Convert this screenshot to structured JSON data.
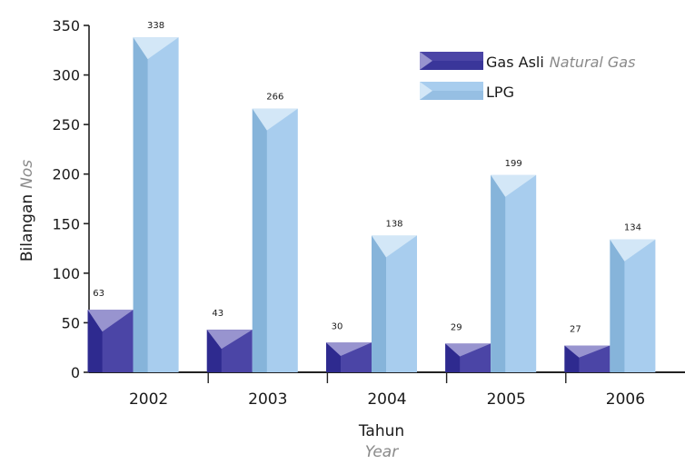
{
  "chart_data": {
    "type": "bar",
    "categories": [
      "2002",
      "2003",
      "2004",
      "2005",
      "2006"
    ],
    "series": [
      {
        "name": "Gas Asli",
        "name_alt": "Natural Gas",
        "values": [
          63,
          43,
          30,
          29,
          27
        ],
        "color": "#4b45a6"
      },
      {
        "name": "LPG",
        "name_alt": "",
        "values": [
          338,
          266,
          138,
          199,
          134
        ],
        "color": "#a8cdee"
      }
    ],
    "xlabel": "Tahun",
    "xlabel_alt": "Year",
    "ylabel": "Bilangan",
    "ylabel_alt": "Nos",
    "ylim": [
      0,
      350
    ],
    "yticks": [
      0,
      50,
      100,
      150,
      200,
      250,
      300,
      350
    ],
    "grid": false,
    "legend_position": "top-right",
    "data_labels": true
  }
}
